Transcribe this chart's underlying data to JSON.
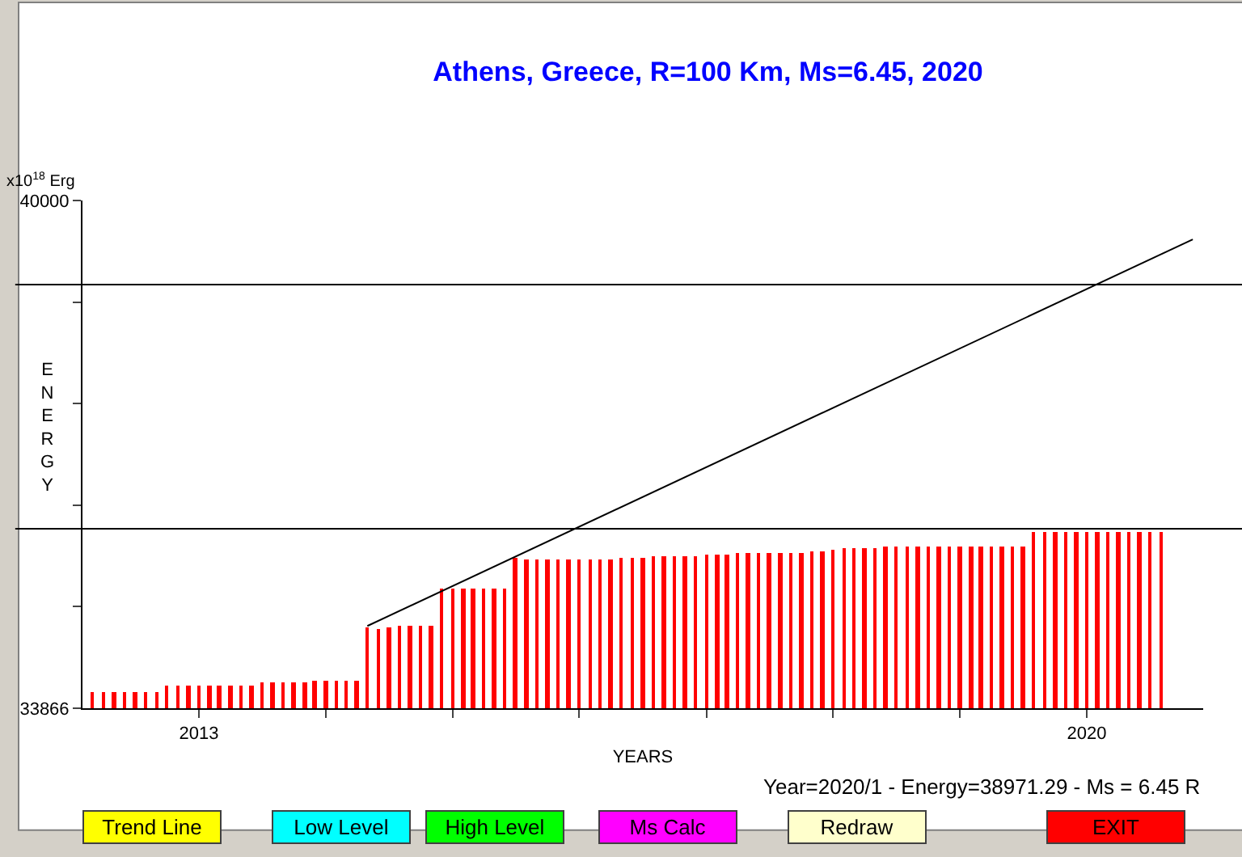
{
  "chart_data": {
    "type": "bar",
    "title": "Athens, Greece, R=100 Km, Ms=6.45, 2020",
    "xlabel": "YEARS",
    "ylabel": "ENERGY",
    "annotations": [
      "x10$^{18}$ Erg",
      "Year=2020/1 - Energy=38971.29 - Ms = 6.45 R",
      "Trend Line",
      "Low Level",
      "High Level",
      "Ms Calc",
      "Redraw",
      "EXIT"
    ],
    "x": [
      "2012-03",
      "2012-04",
      "2012-05",
      "2012-06",
      "2012-07",
      "2012-08",
      "2012-09",
      "2012-10",
      "2012-11",
      "2012-12",
      "2013-01",
      "2013-02",
      "2013-03",
      "2013-04",
      "2013-05",
      "2013-06",
      "2013-07",
      "2013-08",
      "2013-09",
      "2013-10",
      "2013-11",
      "2013-12",
      "2014-01",
      "2014-02",
      "2014-03",
      "2014-04",
      "2014-05",
      "2014-06",
      "2014-07",
      "2014-08",
      "2014-09",
      "2014-10",
      "2014-11",
      "2014-12",
      "2015-01",
      "2015-02",
      "2015-03",
      "2015-04",
      "2015-05",
      "2015-06",
      "2015-07",
      "2015-08",
      "2015-09",
      "2015-10",
      "2015-11",
      "2015-12",
      "2016-01",
      "2016-02",
      "2016-03",
      "2016-04",
      "2016-05",
      "2016-06",
      "2016-07",
      "2016-08",
      "2016-09",
      "2016-10",
      "2016-11",
      "2016-12",
      "2017-01",
      "2017-02",
      "2017-03",
      "2017-04",
      "2017-05",
      "2017-06",
      "2017-07",
      "2017-08",
      "2017-09",
      "2017-10",
      "2017-11",
      "2017-12",
      "2018-01",
      "2018-02",
      "2018-03",
      "2018-04",
      "2018-05",
      "2018-06",
      "2018-07",
      "2018-08",
      "2018-09",
      "2018-10",
      "2018-11",
      "2018-12",
      "2019-01",
      "2019-02",
      "2019-03",
      "2019-04",
      "2019-05",
      "2019-06",
      "2019-07",
      "2019-08",
      "2019-09",
      "2019-10",
      "2019-11",
      "2019-12",
      "2020-01",
      "2020-02",
      "2020-03",
      "2020-04",
      "2020-05",
      "2020-06",
      "2020-07",
      "2020-08"
    ],
    "series": [
      {
        "type": "bar",
        "color": "#ff0000",
        "values": [
          34060,
          34060,
          34060,
          34060,
          34060,
          34060,
          34060,
          34140,
          34140,
          34140,
          34140,
          34140,
          34140,
          34140,
          34140,
          34140,
          34170,
          34170,
          34170,
          34170,
          34180,
          34200,
          34200,
          34200,
          34200,
          34200,
          34840,
          34820,
          34840,
          34860,
          34860,
          34860,
          34860,
          35320,
          35320,
          35320,
          35320,
          35320,
          35320,
          35320,
          35680,
          35660,
          35660,
          35660,
          35660,
          35660,
          35660,
          35660,
          35660,
          35660,
          35680,
          35680,
          35680,
          35700,
          35700,
          35700,
          35700,
          35700,
          35720,
          35720,
          35720,
          35740,
          35740,
          35740,
          35740,
          35740,
          35740,
          35740,
          35760,
          35760,
          35780,
          35800,
          35800,
          35800,
          35800,
          35820,
          35820,
          35820,
          35820,
          35820,
          35820,
          35820,
          35820,
          35820,
          35820,
          35820,
          35820,
          35820,
          35820,
          36000,
          36000,
          36000,
          36000,
          36000,
          36000,
          36000,
          36000,
          36000,
          36000,
          36000,
          36000,
          36000
        ]
      },
      {
        "type": "line",
        "color": "#000000",
        "x": [
          "2014-05",
          "2020-11"
        ],
        "values": [
          34860,
          39530
        ]
      }
    ],
    "ref_lines": [
      {
        "axis": "y",
        "value": 38985,
        "color": "#000000"
      },
      {
        "axis": "y",
        "value": 36035,
        "color": "#000000"
      }
    ],
    "ylim": [
      33866,
      40000
    ],
    "yticks": [
      33866,
      {
        "value": 35093,
        "label": null
      },
      {
        "value": 36320,
        "label": null
      },
      {
        "value": 37546,
        "label": null
      },
      {
        "value": 38773,
        "label": null
      },
      40000
    ],
    "xlim": [
      "2012-02",
      "2020-12"
    ],
    "xticks": [
      {
        "value": "2013",
        "label": "2013"
      },
      {
        "value": "2014",
        "label": null
      },
      {
        "value": "2015",
        "label": null
      },
      {
        "value": "2016",
        "label": null
      },
      {
        "value": "2017",
        "label": null
      },
      {
        "value": "2018",
        "label": null
      },
      {
        "value": "2019",
        "label": null
      },
      {
        "value": "2020",
        "label": "2020"
      }
    ],
    "legend": false
  }
}
